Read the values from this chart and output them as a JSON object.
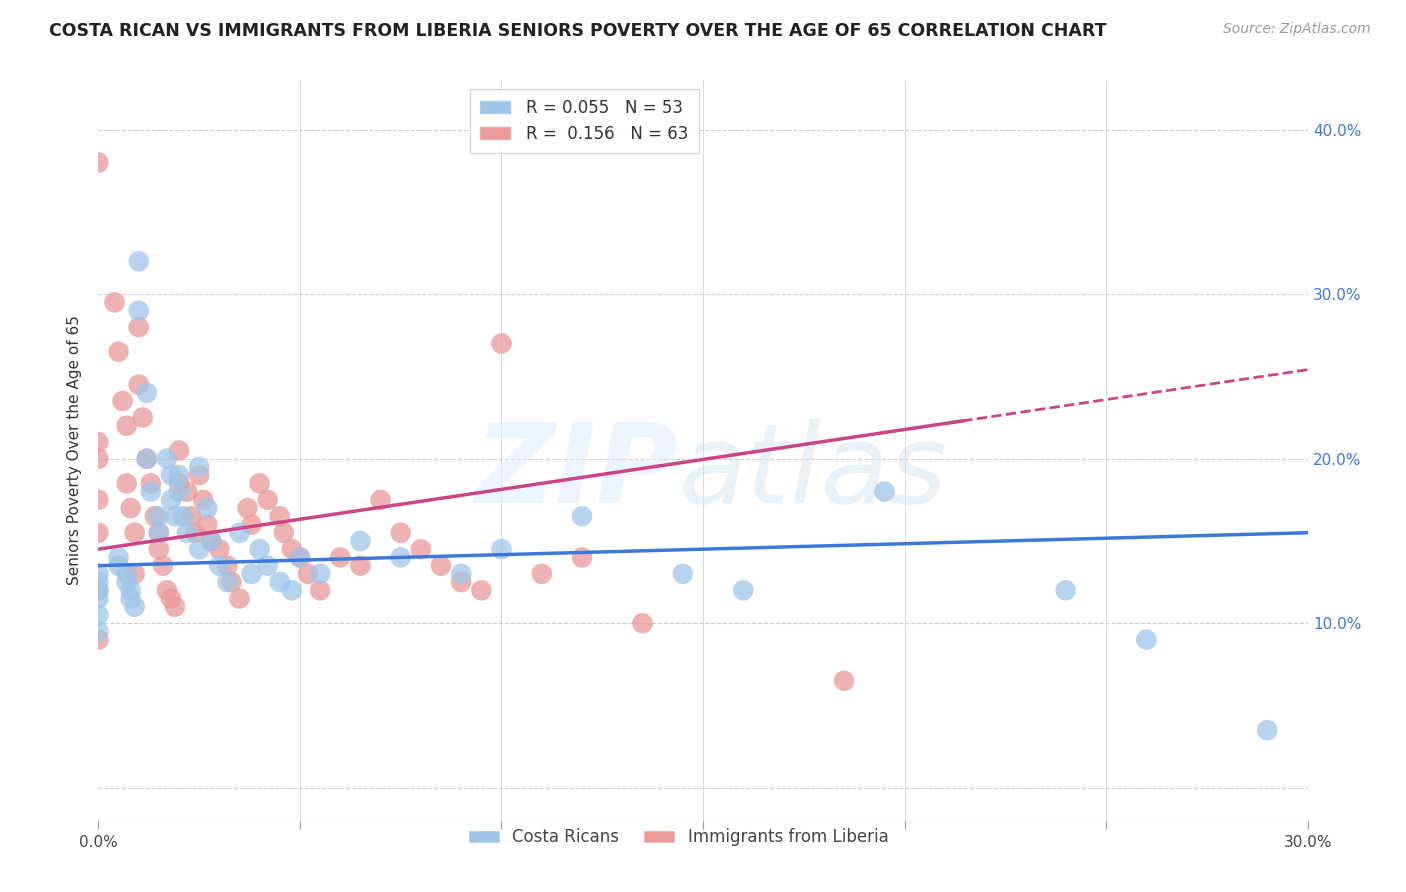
{
  "title": "COSTA RICAN VS IMMIGRANTS FROM LIBERIA SENIORS POVERTY OVER THE AGE OF 65 CORRELATION CHART",
  "source": "Source: ZipAtlas.com",
  "ylabel": "Seniors Poverty Over the Age of 65",
  "xlim": [
    0.0,
    0.3
  ],
  "ylim": [
    -0.02,
    0.43
  ],
  "xticks": [
    0.0,
    0.05,
    0.1,
    0.15,
    0.2,
    0.25,
    0.3
  ],
  "yticks": [
    0.0,
    0.1,
    0.2,
    0.3,
    0.4
  ],
  "background_color": "#ffffff",
  "grid_color": "#cccccc",
  "blue_color": "#9fc5e8",
  "pink_color": "#ea9999",
  "blue_line_color": "#3c78d8",
  "pink_line_color": "#cc4488",
  "R_blue": 0.055,
  "N_blue": 53,
  "R_pink": 0.156,
  "N_pink": 63,
  "legend_label_blue": "Costa Ricans",
  "legend_label_pink": "Immigrants from Liberia",
  "blue_x": [
    0.0,
    0.0,
    0.0,
    0.0,
    0.0,
    0.0,
    0.005,
    0.005,
    0.007,
    0.007,
    0.008,
    0.008,
    0.009,
    0.01,
    0.01,
    0.012,
    0.012,
    0.013,
    0.015,
    0.015,
    0.017,
    0.018,
    0.018,
    0.019,
    0.02,
    0.02,
    0.021,
    0.022,
    0.025,
    0.025,
    0.027,
    0.028,
    0.03,
    0.032,
    0.035,
    0.038,
    0.04,
    0.042,
    0.045,
    0.048,
    0.05,
    0.055,
    0.065,
    0.075,
    0.09,
    0.1,
    0.12,
    0.145,
    0.16,
    0.195,
    0.24,
    0.26,
    0.29
  ],
  "blue_y": [
    0.13,
    0.125,
    0.12,
    0.115,
    0.105,
    0.095,
    0.14,
    0.135,
    0.13,
    0.125,
    0.12,
    0.115,
    0.11,
    0.32,
    0.29,
    0.24,
    0.2,
    0.18,
    0.165,
    0.155,
    0.2,
    0.19,
    0.175,
    0.165,
    0.19,
    0.18,
    0.165,
    0.155,
    0.195,
    0.145,
    0.17,
    0.15,
    0.135,
    0.125,
    0.155,
    0.13,
    0.145,
    0.135,
    0.125,
    0.12,
    0.14,
    0.13,
    0.15,
    0.14,
    0.13,
    0.145,
    0.165,
    0.13,
    0.12,
    0.18,
    0.12,
    0.09,
    0.035
  ],
  "pink_x": [
    0.0,
    0.0,
    0.0,
    0.0,
    0.0,
    0.0,
    0.0,
    0.004,
    0.005,
    0.006,
    0.007,
    0.007,
    0.008,
    0.009,
    0.009,
    0.01,
    0.01,
    0.011,
    0.012,
    0.013,
    0.014,
    0.015,
    0.015,
    0.016,
    0.017,
    0.018,
    0.019,
    0.02,
    0.02,
    0.022,
    0.023,
    0.024,
    0.025,
    0.026,
    0.027,
    0.028,
    0.03,
    0.032,
    0.033,
    0.035,
    0.037,
    0.038,
    0.04,
    0.042,
    0.045,
    0.046,
    0.048,
    0.05,
    0.052,
    0.055,
    0.06,
    0.065,
    0.07,
    0.075,
    0.08,
    0.085,
    0.09,
    0.095,
    0.1,
    0.11,
    0.12,
    0.135,
    0.185
  ],
  "pink_y": [
    0.38,
    0.21,
    0.2,
    0.175,
    0.155,
    0.12,
    0.09,
    0.295,
    0.265,
    0.235,
    0.22,
    0.185,
    0.17,
    0.155,
    0.13,
    0.28,
    0.245,
    0.225,
    0.2,
    0.185,
    0.165,
    0.155,
    0.145,
    0.135,
    0.12,
    0.115,
    0.11,
    0.205,
    0.185,
    0.18,
    0.165,
    0.155,
    0.19,
    0.175,
    0.16,
    0.15,
    0.145,
    0.135,
    0.125,
    0.115,
    0.17,
    0.16,
    0.185,
    0.175,
    0.165,
    0.155,
    0.145,
    0.14,
    0.13,
    0.12,
    0.14,
    0.135,
    0.175,
    0.155,
    0.145,
    0.135,
    0.125,
    0.12,
    0.27,
    0.13,
    0.14,
    0.1,
    0.065
  ]
}
